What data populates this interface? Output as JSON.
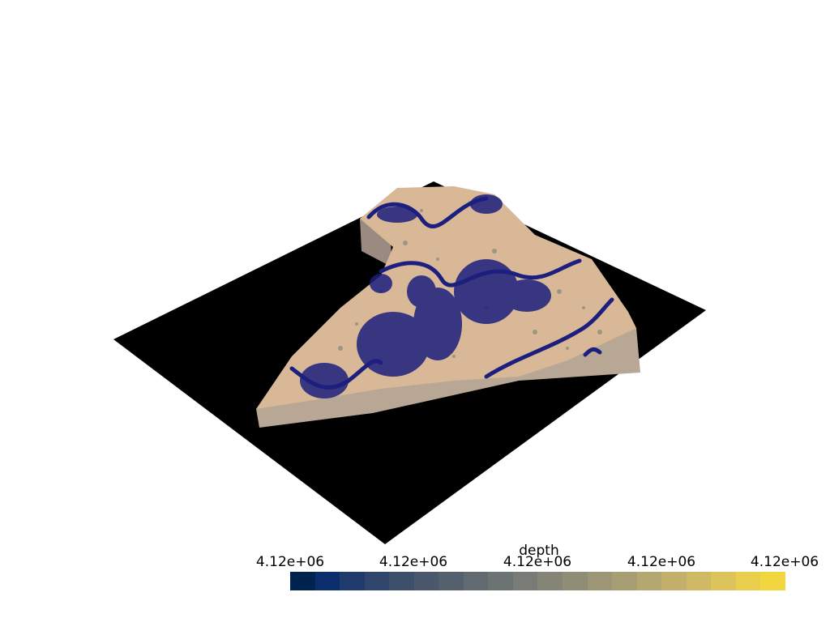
{
  "scalar_bar": {
    "title": "depth",
    "tick_labels": [
      "4.12e+06",
      "4.12e+06",
      "4.12e+06",
      "4.12e+06",
      "4.12e+06"
    ],
    "colormap": "cividis",
    "colors": [
      "#00224e",
      "#0a2e6b",
      "#203a6d",
      "#2f456c",
      "#3c506c",
      "#49586d",
      "#55606f",
      "#616a71",
      "#6c7373",
      "#787b76",
      "#848477",
      "#908d77",
      "#9c9576",
      "#a89e74",
      "#b4a770",
      "#c2b06b",
      "#cfb964",
      "#dcc35a",
      "#e9cd4d",
      "#f2d640"
    ]
  },
  "scene": {
    "background": "#ffffff",
    "ground_plane_color": "#000000",
    "terrain_color": "#d9b898",
    "points_color": "#1c1f7e"
  }
}
